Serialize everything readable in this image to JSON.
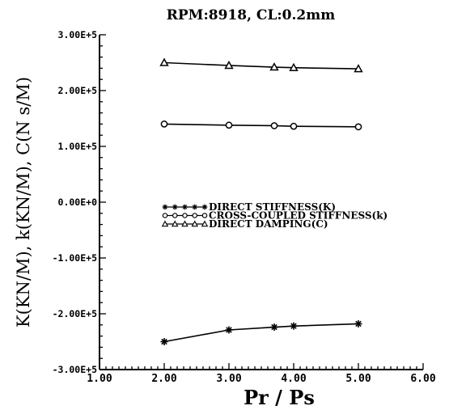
{
  "chart_data": {
    "type": "line",
    "title": "RPM:8918, CL:0.2mm",
    "xlabel": "Pr / Ps",
    "ylabel": "K(KN/M), k(KN/M), C(N s/M)",
    "xlim": [
      1.0,
      6.0
    ],
    "ylim": [
      -300000,
      300000
    ],
    "x_ticks": [
      1.0,
      2.0,
      3.0,
      4.0,
      5.0,
      6.0
    ],
    "x_tick_labels": [
      "1.00",
      "2.00",
      "3.00",
      "4.00",
      "5.00",
      "6.00"
    ],
    "y_ticks": [
      -300000,
      -200000,
      -100000,
      0,
      100000,
      200000,
      300000
    ],
    "y_tick_labels": [
      "-3.00E+5",
      "-2.00E+5",
      "-1.00E+5",
      "0.00E+0",
      "1.00E+5",
      "2.00E+5",
      "3.00E+5"
    ],
    "grid": false,
    "legend_position": "center-left",
    "series": [
      {
        "name": "DIRECT STIFFNESS(K)",
        "marker": "star",
        "x": [
          2.0,
          3.0,
          3.7,
          4.0,
          5.0
        ],
        "y": [
          -250000,
          -229000,
          -224000,
          -222000,
          -218000
        ]
      },
      {
        "name": "CROSS-COUPLED STIFFNESS(k)",
        "marker": "circle",
        "x": [
          2.0,
          3.0,
          3.7,
          4.0,
          5.0
        ],
        "y": [
          140000,
          138000,
          137000,
          136000,
          135000
        ]
      },
      {
        "name": "DIRECT DAMPING(C)",
        "marker": "triangle",
        "x": [
          2.0,
          3.0,
          3.7,
          4.0,
          5.0
        ],
        "y": [
          250000,
          245000,
          242000,
          241000,
          239000
        ]
      }
    ]
  }
}
